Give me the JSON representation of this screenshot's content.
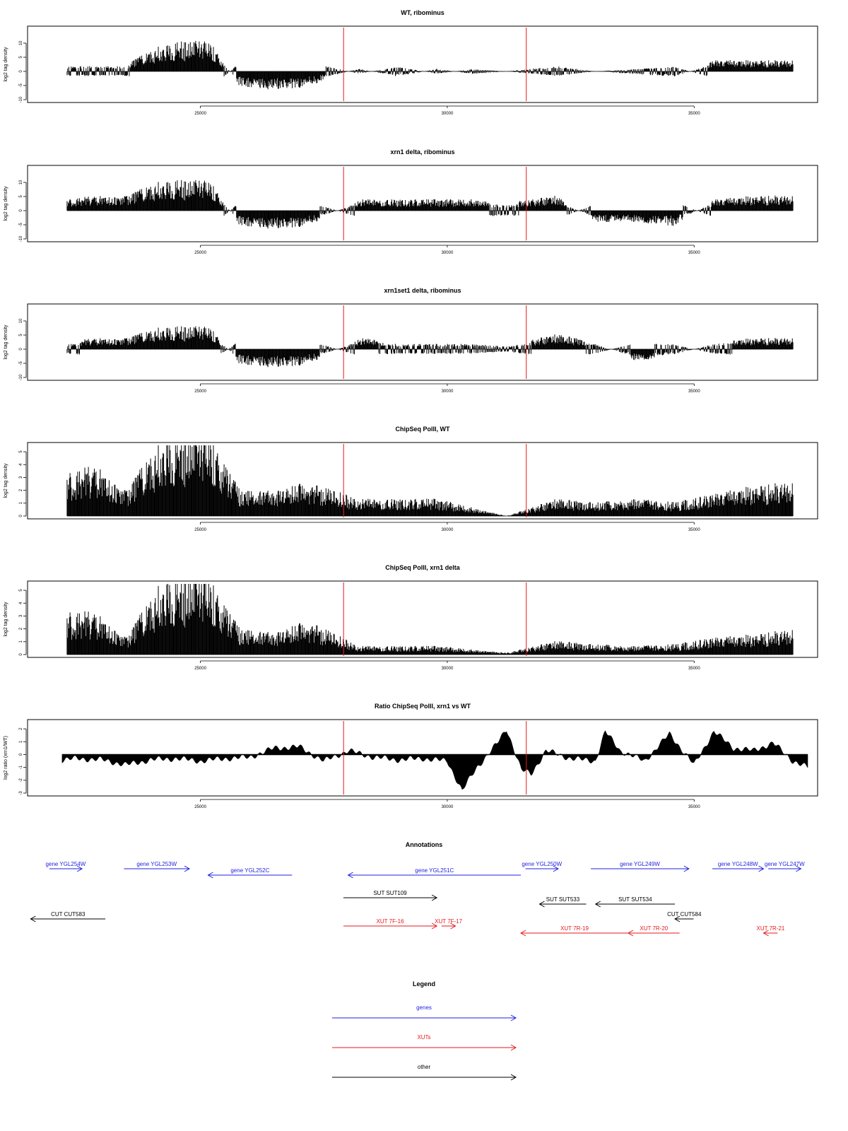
{
  "colors": {
    "track": "#000000",
    "marker": "#e41a1c",
    "gene": "#1f1fe0",
    "xut": "#e41a1c",
    "other": "#000000",
    "frame": "#000000"
  },
  "chart_data": [
    {
      "type": "bar",
      "title": "WT, ribominus",
      "ylabel": "log2 tag density",
      "xlim": [
        21500,
        37500
      ],
      "ylim": [
        -10,
        15
      ],
      "xticks": [
        25000,
        30000,
        35000
      ],
      "xtick_labels": [
        "25000",
        "30000",
        "35000"
      ],
      "yticks": [
        -10,
        -5,
        0,
        5,
        10
      ],
      "ytick_labels": [
        "-10",
        "-5",
        "0",
        "5",
        "10"
      ],
      "markers_x": [
        27900,
        31600
      ],
      "x": [
        22300,
        22900,
        23500,
        24200,
        24700,
        25200,
        25800,
        26500,
        27200,
        28200,
        29000,
        29800,
        30500,
        31200,
        32200,
        33000,
        33800,
        34600,
        35400,
        36200,
        37000
      ],
      "values": [
        2,
        2,
        2,
        7,
        8,
        8,
        -4,
        -5,
        -4,
        1,
        -2,
        1,
        -1,
        0,
        2,
        0,
        -1,
        -2,
        3,
        3,
        3
      ]
    },
    {
      "type": "bar",
      "title": "xrn1 delta, ribominus",
      "ylabel": "log2 tag density",
      "xlim": [
        21500,
        37500
      ],
      "ylim": [
        -10,
        15
      ],
      "xticks": [
        25000,
        30000,
        35000
      ],
      "xtick_labels": [
        "25000",
        "30000",
        "35000"
      ],
      "yticks": [
        -10,
        -5,
        0,
        5,
        10
      ],
      "ytick_labels": [
        "-10",
        "-5",
        "0",
        "5",
        "10"
      ],
      "markers_x": [
        27900,
        31600
      ],
      "x": [
        22300,
        22900,
        23500,
        24200,
        24700,
        25200,
        25800,
        26500,
        27200,
        28200,
        29000,
        29800,
        30500,
        31200,
        32200,
        33000,
        33800,
        34600,
        35400,
        36200,
        37000
      ],
      "values": [
        3,
        4,
        4,
        8,
        8,
        8,
        -4,
        -5,
        -4,
        3,
        3,
        3,
        3,
        2,
        4,
        -3,
        -3,
        -4,
        3,
        4,
        4
      ]
    },
    {
      "type": "bar",
      "title": "xrn1set1 delta, ribominus",
      "ylabel": "log2 tag density",
      "xlim": [
        21500,
        37500
      ],
      "ylim": [
        -10,
        15
      ],
      "xticks": [
        25000,
        30000,
        35000
      ],
      "xtick_labels": [
        "25000",
        "30000",
        "35000"
      ],
      "yticks": [
        -10,
        -5,
        0,
        5,
        10
      ],
      "ytick_labels": [
        "-10",
        "-5",
        "0",
        "5",
        "10"
      ],
      "markers_x": [
        27900,
        31600
      ],
      "x": [
        22300,
        22900,
        23500,
        24200,
        24700,
        25200,
        25800,
        26500,
        27200,
        28200,
        29000,
        29800,
        30500,
        31200,
        32200,
        33000,
        33800,
        34600,
        35400,
        36200,
        37000
      ],
      "values": [
        2,
        3,
        3,
        6,
        6,
        6,
        -4,
        -5,
        -4,
        3,
        2,
        2,
        2,
        1,
        4,
        2,
        -3,
        -2,
        2,
        3,
        3
      ]
    },
    {
      "type": "bar",
      "title": "ChipSeq PolII, WT",
      "ylabel": "log2 tag density",
      "xlim": [
        21500,
        37500
      ],
      "ylim": [
        0,
        5.5
      ],
      "xticks": [
        25000,
        30000,
        35000
      ],
      "xtick_labels": [
        "25000",
        "30000",
        "35000"
      ],
      "yticks": [
        0,
        1,
        2,
        3,
        4,
        5
      ],
      "ytick_labels": [
        "0",
        "1",
        "2",
        "3",
        "4",
        "5"
      ],
      "markers_x": [
        27900,
        31600
      ],
      "x": [
        22300,
        22900,
        23500,
        24200,
        24700,
        25200,
        25800,
        26500,
        27200,
        28200,
        29000,
        29800,
        30500,
        31200,
        32200,
        33000,
        33800,
        34600,
        35400,
        36200,
        37000
      ],
      "values": [
        2.5,
        3,
        1.5,
        4.5,
        5,
        4.8,
        1.5,
        1.5,
        2,
        1,
        1,
        1,
        0.5,
        0,
        1,
        0.8,
        1,
        0.8,
        1.3,
        1.8,
        2
      ]
    },
    {
      "type": "bar",
      "title": "ChipSeq PolII, xrn1 delta",
      "ylabel": "log2 tag density",
      "xlim": [
        21500,
        37500
      ],
      "ylim": [
        0,
        5.5
      ],
      "xticks": [
        25000,
        30000,
        35000
      ],
      "xtick_labels": [
        "25000",
        "30000",
        "35000"
      ],
      "yticks": [
        0,
        1,
        2,
        3,
        4,
        5
      ],
      "ytick_labels": [
        "0",
        "1",
        "2",
        "3",
        "4",
        "5"
      ],
      "markers_x": [
        27900,
        31600
      ],
      "x": [
        22300,
        22900,
        23500,
        24200,
        24700,
        25200,
        25800,
        26500,
        27200,
        28200,
        29000,
        29800,
        30500,
        31200,
        32200,
        33000,
        33800,
        34600,
        35400,
        36200,
        37000
      ],
      "values": [
        2.5,
        2.5,
        1,
        4.3,
        4.7,
        4.5,
        1.5,
        1.3,
        2,
        0.5,
        0.5,
        0.5,
        0.3,
        0.1,
        0.8,
        0.6,
        0.5,
        0.6,
        1,
        1.2,
        1.5
      ]
    },
    {
      "type": "area",
      "title": "Ratio ChipSeq PolII, xrn1 vs WT",
      "ylabel": "log2 ratio (xrn1/WT)",
      "xlim": [
        21500,
        37500
      ],
      "ylim": [
        -3,
        2.5
      ],
      "xticks": [
        25000,
        30000,
        35000
      ],
      "xtick_labels": [
        "25000",
        "30000",
        "35000"
      ],
      "yticks": [
        -3,
        -2,
        -1,
        0,
        1,
        2
      ],
      "ytick_labels": [
        "-3",
        "-2",
        "-1",
        "0",
        "1",
        "2"
      ],
      "markers_x": [
        27900,
        31600
      ],
      "x": [
        22000,
        22500,
        23000,
        23500,
        24000,
        24500,
        25000,
        25500,
        26000,
        26500,
        27000,
        27500,
        28000,
        28500,
        29000,
        29500,
        30000,
        30300,
        30600,
        31000,
        31200,
        31500,
        31700,
        32000,
        32500,
        33000,
        33200,
        33500,
        34000,
        34500,
        35000,
        35400,
        35800,
        36200,
        36600,
        37000,
        37300
      ],
      "values": [
        -0.5,
        -0.3,
        -0.4,
        -0.8,
        -0.4,
        -0.3,
        -0.5,
        -0.3,
        -0.2,
        0.5,
        0.6,
        -0.5,
        0.3,
        -0.2,
        -0.4,
        -0.3,
        -0.5,
        -2.8,
        -1,
        0.8,
        2,
        -1.2,
        -1.5,
        0.3,
        -0.3,
        -0.5,
        1.8,
        0.3,
        -0.5,
        1.6,
        -0.8,
        1.8,
        0.5,
        0.3,
        0.9,
        -0.5,
        -1
      ]
    }
  ],
  "annotations": {
    "title": "Annotations",
    "features": [
      {
        "label": "gene YGL254W",
        "start": 21600,
        "end": 22300,
        "strand": "+",
        "kind": "gene",
        "row": 0
      },
      {
        "label": "gene YGL253W",
        "start": 23200,
        "end": 24600,
        "strand": "+",
        "kind": "gene",
        "row": 0
      },
      {
        "label": "gene YGL252C",
        "start": 25000,
        "end": 26800,
        "strand": "-",
        "kind": "gene",
        "row": 1
      },
      {
        "label": "gene YGL251C",
        "start": 28000,
        "end": 31700,
        "strand": "-",
        "kind": "gene",
        "row": 1
      },
      {
        "label": "gene YGL250W",
        "start": 31800,
        "end": 32500,
        "strand": "+",
        "kind": "gene",
        "row": 0
      },
      {
        "label": "gene YGL249W",
        "start": 33200,
        "end": 35300,
        "strand": "+",
        "kind": "gene",
        "row": 0
      },
      {
        "label": "gene YGL248W",
        "start": 35800,
        "end": 36900,
        "strand": "+",
        "kind": "gene",
        "row": 0
      },
      {
        "label": "gene YGL247W",
        "start": 37000,
        "end": 37700,
        "strand": "+",
        "kind": "gene",
        "row": 0
      },
      {
        "label": "SUT SUT109",
        "start": 27900,
        "end": 29900,
        "strand": "+",
        "kind": "other",
        "row": 3
      },
      {
        "label": "SUT SUT533",
        "start": 32100,
        "end": 33100,
        "strand": "-",
        "kind": "other",
        "row": 4
      },
      {
        "label": "SUT SUT534",
        "start": 33300,
        "end": 35000,
        "strand": "-",
        "kind": "other",
        "row": 4
      },
      {
        "label": "CUT CUT583",
        "start": 21200,
        "end": 22800,
        "strand": "-",
        "kind": "other",
        "row": 5
      },
      {
        "label": "CUT CUT584",
        "start": 35000,
        "end": 35400,
        "strand": "-",
        "kind": "other",
        "row": 5
      },
      {
        "label": "XUT 7F-16",
        "start": 27900,
        "end": 29900,
        "strand": "+",
        "kind": "xut",
        "row": 6
      },
      {
        "label": "XUT 7F-17",
        "start": 30000,
        "end": 30300,
        "strand": "+",
        "kind": "xut",
        "row": 6
      },
      {
        "label": "XUT 7R-19",
        "start": 31700,
        "end": 34000,
        "strand": "-",
        "kind": "xut",
        "row": 7
      },
      {
        "label": "XUT 7R-20",
        "start": 34000,
        "end": 35100,
        "strand": "-",
        "kind": "xut",
        "row": 7
      },
      {
        "label": "XUT 7R-21",
        "start": 36900,
        "end": 37200,
        "strand": "-",
        "kind": "xut",
        "row": 7
      }
    ]
  },
  "legend": {
    "title": "Legend",
    "items": [
      {
        "label": "genes",
        "kind": "gene"
      },
      {
        "label": "XUTs",
        "kind": "xut"
      },
      {
        "label": "other",
        "kind": "other"
      }
    ]
  }
}
